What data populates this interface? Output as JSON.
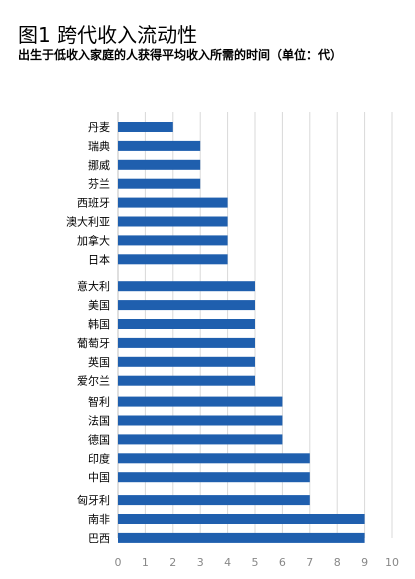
{
  "header": {
    "title": "图1 跨代收入流动性",
    "subtitle": "出生于低收入家庭的人获得平均收入所需的时间（单位：代）"
  },
  "chart_data": {
    "type": "bar",
    "orientation": "horizontal",
    "title": "图1 跨代收入流动性",
    "subtitle": "出生于低收入家庭的人获得平均收入所需的时间（单位：代）",
    "categories": [
      "丹麦",
      "瑞典",
      "挪威",
      "芬兰",
      "西班牙",
      "澳大利亚",
      "加拿大",
      "日本",
      "意大利",
      "美国",
      "韩国",
      "葡萄牙",
      "英国",
      "爱尔兰",
      "智利",
      "法国",
      "德国",
      "印度",
      "中国",
      "匈牙利",
      "南非",
      "巴西"
    ],
    "values": [
      2,
      3,
      3,
      3,
      4,
      4,
      4,
      4,
      5,
      5,
      5,
      5,
      5,
      5,
      6,
      6,
      6,
      7,
      7,
      7,
      9,
      9
    ],
    "xlim": [
      0,
      10
    ],
    "xticks": [
      0,
      1,
      2,
      3,
      4,
      5,
      6,
      7,
      8,
      9,
      10
    ],
    "grid": true,
    "bar_color": "#1f5fae"
  }
}
